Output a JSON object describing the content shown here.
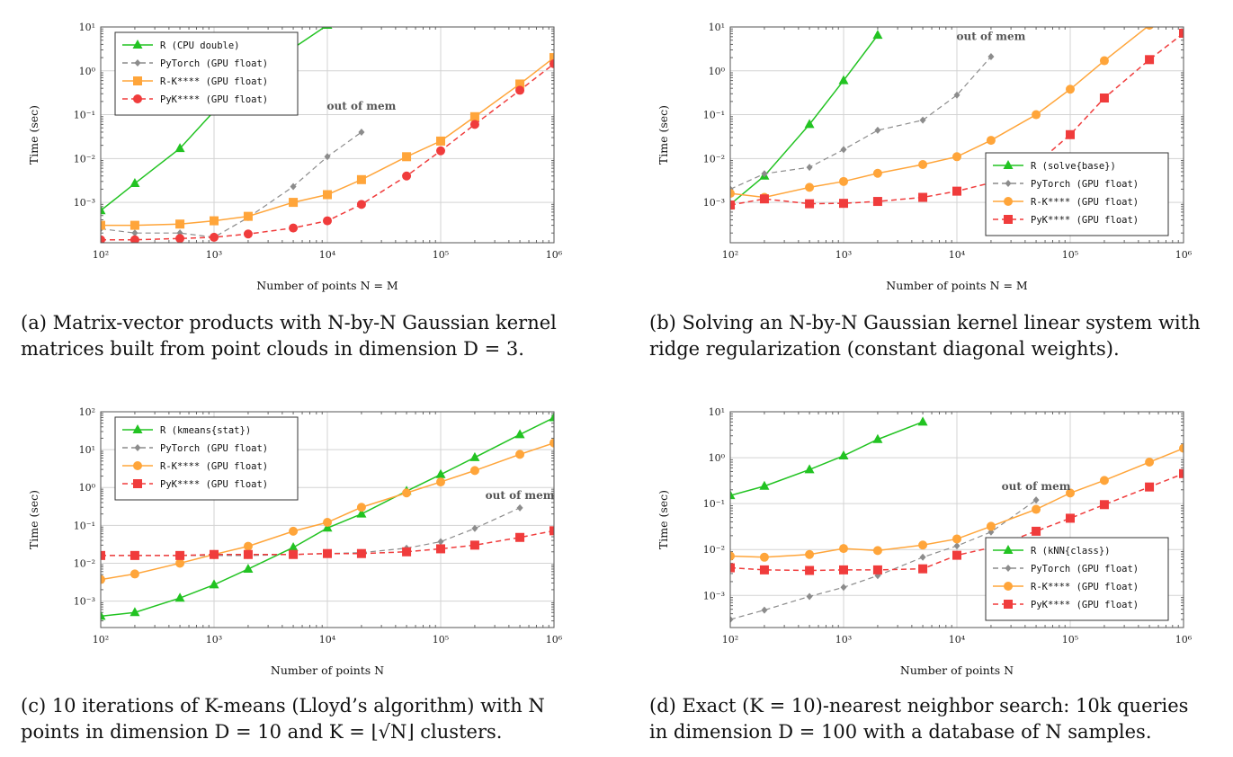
{
  "colors": {
    "R": "#22c322",
    "PyTorch": "#8c8c8c",
    "RKeops": "#ffa53a",
    "PyKeops": "#f03c3c",
    "grid": "#d3d3d3",
    "frame": "#555555"
  },
  "panels": [
    {
      "caption_lines": [
        "(a) Matrix-vector products with N-by-N Gaussian kernel",
        "matrices built from point clouds in dimension D = 3."
      ]
    },
    {
      "caption_lines": [
        "(b) Solving an N-by-N Gaussian kernel linear system with",
        "ridge regularization (constant diagonal weights)."
      ]
    },
    {
      "caption_lines": [
        "(c) 10 iterations of K-means (Lloyd’s algorithm) with N",
        "points in dimension D = 10 and K = ⌊√N⌋ clusters."
      ]
    },
    {
      "caption_lines": [
        "(d) Exact (K = 10)-nearest neighbor search: 10k queries",
        "in dimension D = 100 with a database of N samples."
      ]
    }
  ],
  "chart_data": [
    {
      "type": "line",
      "xscale": "log",
      "yscale": "log",
      "xlim": [
        100,
        1000000
      ],
      "ylim": [
        0.00012,
        10
      ],
      "xlabel": "Number of points N = M",
      "ylabel": "Time (sec)",
      "xticks": [
        100,
        1000,
        10000,
        100000,
        1000000
      ],
      "xtick_labels": [
        "10²",
        "10³",
        "10⁴",
        "10⁵",
        "10⁶"
      ],
      "yticks": [
        0.001,
        0.01,
        0.1,
        1,
        10
      ],
      "ytick_labels": [
        "10⁻³",
        "10⁻²",
        "10⁻¹",
        "10⁰",
        "10¹"
      ],
      "grid": true,
      "legend_position": "top-left",
      "annotation": {
        "text": "out of mem",
        "x": 20000,
        "y": 0.13
      },
      "series": [
        {
          "name": "R     (CPU double)",
          "key": "R",
          "marker": "triangle",
          "dashed": false,
          "x": [
            100,
            200,
            500,
            1000,
            2000,
            5000,
            10000
          ],
          "y": [
            0.00065,
            0.0027,
            0.017,
            0.12,
            0.75,
            3.3,
            11
          ]
        },
        {
          "name": "PyTorch (GPU float)",
          "key": "PyTorch",
          "marker": "diamond",
          "dashed": true,
          "x": [
            100,
            200,
            500,
            1000,
            2000,
            5000,
            10000,
            20000
          ],
          "y": [
            0.00025,
            0.0002,
            0.0002,
            0.00016,
            0.00045,
            0.0023,
            0.011,
            0.04
          ]
        },
        {
          "name": "R-K**** (GPU float)",
          "key": "RKeops",
          "marker": "square",
          "dashed": false,
          "x": [
            100,
            200,
            500,
            1000,
            2000,
            5000,
            10000,
            20000,
            50000,
            100000,
            200000,
            500000,
            1000000
          ],
          "y": [
            0.0003,
            0.0003,
            0.00032,
            0.00038,
            0.00048,
            0.001,
            0.0015,
            0.0033,
            0.011,
            0.025,
            0.09,
            0.5,
            2.0
          ]
        },
        {
          "name": "PyK**** (GPU float)",
          "key": "PyKeops",
          "marker": "circle",
          "dashed": true,
          "x": [
            100,
            200,
            500,
            1000,
            2000,
            5000,
            10000,
            20000,
            50000,
            100000,
            200000,
            500000,
            1000000
          ],
          "y": [
            0.00014,
            0.00014,
            0.00015,
            0.00016,
            0.00019,
            0.00026,
            0.00038,
            0.0009,
            0.004,
            0.015,
            0.06,
            0.36,
            1.45
          ]
        }
      ]
    },
    {
      "type": "line",
      "xscale": "log",
      "yscale": "log",
      "xlim": [
        100,
        1000000
      ],
      "ylim": [
        0.00012,
        10
      ],
      "xlabel": "Number of points N = M",
      "ylabel": "Time (sec)",
      "xticks": [
        100,
        1000,
        10000,
        100000,
        1000000
      ],
      "xtick_labels": [
        "10²",
        "10³",
        "10⁴",
        "10⁵",
        "10⁶"
      ],
      "yticks": [
        0.001,
        0.01,
        0.1,
        1,
        10
      ],
      "ytick_labels": [
        "10⁻³",
        "10⁻²",
        "10⁻¹",
        "10⁰",
        "10¹"
      ],
      "grid": true,
      "legend_position": "bottom-right",
      "annotation": {
        "text": "out of mem",
        "x": 20000,
        "y": 5
      },
      "series": [
        {
          "name": "R     (solve{base})",
          "key": "R",
          "marker": "triangle",
          "dashed": false,
          "x": [
            100,
            200,
            500,
            1000,
            2000
          ],
          "y": [
            0.0009,
            0.004,
            0.06,
            0.6,
            6.5
          ]
        },
        {
          "name": "PyTorch (GPU float)",
          "key": "PyTorch",
          "marker": "diamond",
          "dashed": true,
          "x": [
            100,
            200,
            500,
            1000,
            2000,
            5000,
            10000,
            20000
          ],
          "y": [
            0.002,
            0.0045,
            0.0063,
            0.016,
            0.044,
            0.075,
            0.28,
            2.1
          ]
        },
        {
          "name": "R-K**** (GPU float)",
          "key": "RKeops",
          "marker": "circle",
          "dashed": false,
          "x": [
            100,
            200,
            500,
            1000,
            2000,
            5000,
            10000,
            20000,
            50000,
            100000,
            200000,
            500000,
            1000000
          ],
          "y": [
            0.0016,
            0.0013,
            0.0022,
            0.003,
            0.0046,
            0.0073,
            0.011,
            0.026,
            0.1,
            0.38,
            1.7,
            11,
            60
          ]
        },
        {
          "name": "PyK**** (GPU float)",
          "key": "PyKeops",
          "marker": "square",
          "dashed": true,
          "x": [
            100,
            200,
            500,
            1000,
            2000,
            5000,
            10000,
            20000,
            50000,
            100000,
            200000,
            500000,
            1000000
          ],
          "y": [
            0.00087,
            0.0012,
            0.00093,
            0.00095,
            0.00105,
            0.0013,
            0.0018,
            0.0028,
            0.0075,
            0.035,
            0.24,
            1.8,
            7.2
          ]
        }
      ]
    },
    {
      "type": "line",
      "xscale": "log",
      "yscale": "log",
      "xlim": [
        100,
        1000000
      ],
      "ylim": [
        0.0002,
        100
      ],
      "xlabel": "Number of points N",
      "ylabel": "Time (sec)",
      "xticks": [
        100,
        1000,
        10000,
        100000,
        1000000
      ],
      "xtick_labels": [
        "10²",
        "10³",
        "10⁴",
        "10⁵",
        "10⁶"
      ],
      "yticks": [
        0.001,
        0.01,
        0.1,
        1,
        10,
        100
      ],
      "ytick_labels": [
        "10⁻³",
        "10⁻²",
        "10⁻¹",
        "10⁰",
        "10¹",
        "10²"
      ],
      "grid": true,
      "legend_position": "top-left",
      "annotation": {
        "text": "out of mem",
        "x": 500000,
        "y": 0.5
      },
      "series": [
        {
          "name": "R   (kmeans{stat})",
          "key": "R",
          "marker": "triangle",
          "dashed": false,
          "x": [
            100,
            200,
            500,
            1000,
            2000,
            5000,
            10000,
            20000,
            50000,
            100000,
            200000,
            500000,
            1000000
          ],
          "y": [
            0.0004,
            0.0005,
            0.0012,
            0.0027,
            0.007,
            0.026,
            0.085,
            0.2,
            0.8,
            2.2,
            6.2,
            25,
            70
          ]
        },
        {
          "name": "PyTorch (GPU float)",
          "key": "PyTorch",
          "marker": "diamond",
          "dashed": true,
          "x": [
            100,
            200,
            500,
            1000,
            2000,
            5000,
            10000,
            20000,
            50000,
            100000,
            200000,
            500000
          ],
          "y": [
            0.016,
            0.016,
            0.016,
            0.016,
            0.016,
            0.017,
            0.018,
            0.019,
            0.025,
            0.037,
            0.083,
            0.29
          ]
        },
        {
          "name": "R-K**** (GPU float)",
          "key": "RKeops",
          "marker": "circle",
          "dashed": false,
          "x": [
            100,
            200,
            500,
            1000,
            2000,
            5000,
            10000,
            20000,
            50000,
            100000,
            200000,
            500000,
            1000000
          ],
          "y": [
            0.0037,
            0.0052,
            0.01,
            0.017,
            0.028,
            0.07,
            0.12,
            0.3,
            0.72,
            1.4,
            2.8,
            7.5,
            15
          ]
        },
        {
          "name": "PyK**** (GPU float)",
          "key": "PyKeops",
          "marker": "square",
          "dashed": true,
          "x": [
            100,
            200,
            500,
            1000,
            2000,
            5000,
            10000,
            20000,
            50000,
            100000,
            200000,
            500000,
            1000000
          ],
          "y": [
            0.016,
            0.016,
            0.016,
            0.017,
            0.017,
            0.017,
            0.018,
            0.018,
            0.02,
            0.024,
            0.03,
            0.048,
            0.072
          ]
        }
      ]
    },
    {
      "type": "line",
      "xscale": "log",
      "yscale": "log",
      "xlim": [
        100,
        1000000
      ],
      "ylim": [
        0.0002,
        10
      ],
      "xlabel": "Number of points N",
      "ylabel": "Time (sec)",
      "xticks": [
        100,
        1000,
        10000,
        100000,
        1000000
      ],
      "xtick_labels": [
        "10²",
        "10³",
        "10⁴",
        "10⁵",
        "10⁶"
      ],
      "yticks": [
        0.001,
        0.01,
        0.1,
        1,
        10
      ],
      "ytick_labels": [
        "10⁻³",
        "10⁻²",
        "10⁻¹",
        "10⁰",
        "10¹"
      ],
      "grid": true,
      "legend_position": "bottom-right",
      "annotation": {
        "text": "out of mem",
        "x": 50000,
        "y": 0.2
      },
      "series": [
        {
          "name": "R    (kNN{class})",
          "key": "R",
          "marker": "triangle",
          "dashed": false,
          "x": [
            100,
            200,
            500,
            1000,
            2000,
            5000
          ],
          "y": [
            0.15,
            0.24,
            0.55,
            1.1,
            2.5,
            6
          ]
        },
        {
          "name": "PyTorch (GPU float)",
          "key": "PyTorch",
          "marker": "diamond",
          "dashed": true,
          "x": [
            100,
            200,
            500,
            1000,
            2000,
            5000,
            10000,
            20000,
            50000
          ],
          "y": [
            0.0003,
            0.00048,
            0.00095,
            0.0015,
            0.0027,
            0.0068,
            0.012,
            0.024,
            0.12
          ]
        },
        {
          "name": "R-K**** (GPU float)",
          "key": "RKeops",
          "marker": "circle",
          "dashed": false,
          "x": [
            100,
            200,
            500,
            1000,
            2000,
            5000,
            10000,
            20000,
            50000,
            100000,
            200000,
            500000,
            1000000
          ],
          "y": [
            0.0072,
            0.0068,
            0.0078,
            0.0105,
            0.0095,
            0.0125,
            0.017,
            0.032,
            0.075,
            0.17,
            0.32,
            0.8,
            1.6
          ]
        },
        {
          "name": "PyK**** (GPU float)",
          "key": "PyKeops",
          "marker": "square",
          "dashed": true,
          "x": [
            100,
            200,
            500,
            1000,
            2000,
            5000,
            10000,
            20000,
            50000,
            100000,
            200000,
            500000,
            1000000
          ],
          "y": [
            0.004,
            0.0036,
            0.0035,
            0.0036,
            0.0036,
            0.0038,
            0.0075,
            0.011,
            0.025,
            0.048,
            0.095,
            0.23,
            0.45
          ]
        }
      ]
    }
  ]
}
